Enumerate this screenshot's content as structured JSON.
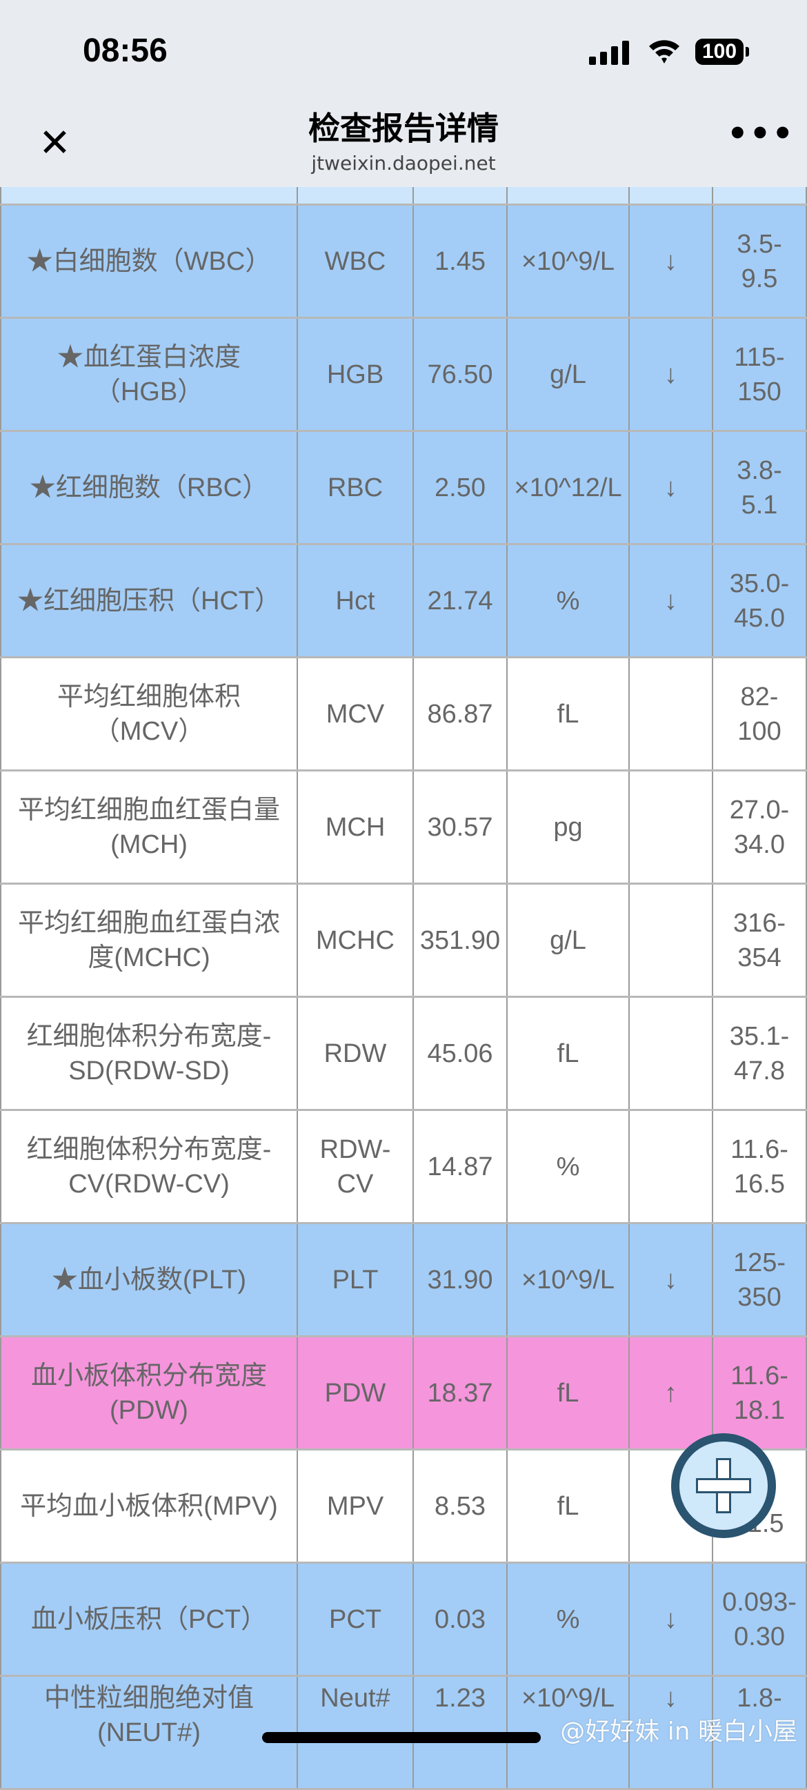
{
  "status_bar": {
    "time": "08:56",
    "battery": "100"
  },
  "nav": {
    "title": "检查报告详情",
    "subtitle": "jtweixin.daopei.net",
    "close_icon": "close-icon",
    "more_icon": "more-icon"
  },
  "colors": {
    "low": "#a3cdf7",
    "high": "#f595dc",
    "normal": "#ffffff",
    "header": "#cde6fb"
  },
  "rows": [
    {
      "name": "★白细胞数（WBC）",
      "code": "WBC",
      "value": "1.45",
      "unit": "×10^9/L",
      "flag": "↓",
      "range": "3.5-\n9.5",
      "status": "low"
    },
    {
      "name": "★血红蛋白浓度\n（HGB）",
      "code": "HGB",
      "value": "76.50",
      "unit": "g/L",
      "flag": "↓",
      "range": "115-\n150",
      "status": "low"
    },
    {
      "name": "★红细胞数（RBC）",
      "code": "RBC",
      "value": "2.50",
      "unit": "×10^12/L",
      "flag": "↓",
      "range": "3.8-\n5.1",
      "status": "low"
    },
    {
      "name": "★红细胞压积（HCT）",
      "code": "Hct",
      "value": "21.74",
      "unit": "%",
      "flag": "↓",
      "range": "35.0-\n45.0",
      "status": "low"
    },
    {
      "name": "平均红细胞体积\n（MCV）",
      "code": "MCV",
      "value": "86.87",
      "unit": "fL",
      "flag": "",
      "range": "82-\n100",
      "status": "normal"
    },
    {
      "name": "平均红细胞血红蛋白量\n(MCH)",
      "code": "MCH",
      "value": "30.57",
      "unit": "pg",
      "flag": "",
      "range": "27.0-\n34.0",
      "status": "normal"
    },
    {
      "name": "平均红细胞血红蛋白浓\n度(MCHC)",
      "code": "MCHC",
      "value": "351.90",
      "unit": "g/L",
      "flag": "",
      "range": "316-\n354",
      "status": "normal"
    },
    {
      "name": "红细胞体积分布宽度-\nSD(RDW-SD)",
      "code": "RDW",
      "value": "45.06",
      "unit": "fL",
      "flag": "",
      "range": "35.1-\n47.8",
      "status": "normal"
    },
    {
      "name": "红细胞体积分布宽度-\nCV(RDW-CV)",
      "code": "RDW-\nCV",
      "value": "14.87",
      "unit": "%",
      "flag": "",
      "range": "11.6-\n16.5",
      "status": "normal"
    },
    {
      "name": "★血小板数(PLT)",
      "code": "PLT",
      "value": "31.90",
      "unit": "×10^9/L",
      "flag": "↓",
      "range": "125-\n350",
      "status": "low"
    },
    {
      "name": "血小板体积分布宽度\n(PDW)",
      "code": "PDW",
      "value": "18.37",
      "unit": "fL",
      "flag": "↑",
      "range": "11.6-\n18.1",
      "status": "high"
    },
    {
      "name": "平均血小板体积(MPV)",
      "code": "MPV",
      "value": "8.53",
      "unit": "fL",
      "flag": "",
      "range": "-\n11.5",
      "status": "normal"
    },
    {
      "name": "血小板压积（PCT）",
      "code": "PCT",
      "value": "0.03",
      "unit": "%",
      "flag": "↓",
      "range": "0.093-\n0.30",
      "status": "low"
    },
    {
      "name": "中性粒细胞绝对值\n(NEUT#)",
      "code": "Neut#",
      "value": "1.23",
      "unit": "×10^9/L",
      "flag": "↓",
      "range": "1.8-",
      "status": "low"
    }
  ],
  "fab": {
    "icon": "plus-icon"
  },
  "watermark": "@好好妹 in 暖白小屋"
}
